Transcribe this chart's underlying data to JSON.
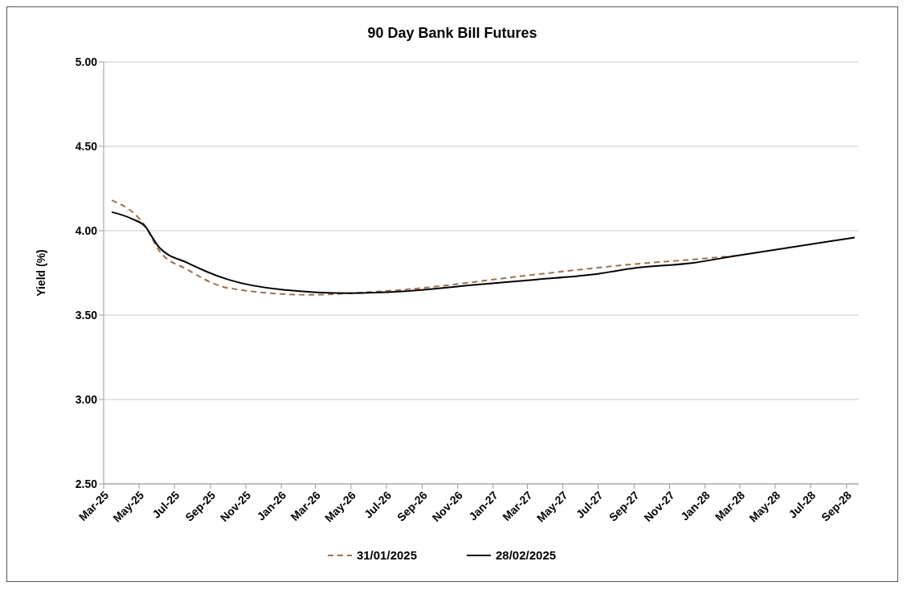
{
  "chart_data": {
    "type": "line",
    "title": "90 Day Bank Bill Futures",
    "ylabel": "Yield (%)",
    "xlim": [
      "2025-03-01",
      "2028-09-22"
    ],
    "xticks": [
      {
        "value": "2025-03",
        "label": "Mar-25"
      },
      {
        "value": "2025-05",
        "label": "May-25"
      },
      {
        "value": "2025-07",
        "label": "Jul-25"
      },
      {
        "value": "2025-09",
        "label": "Sep-25"
      },
      {
        "value": "2025-11",
        "label": "Nov-25"
      },
      {
        "value": "2026-01",
        "label": "Jan-26"
      },
      {
        "value": "2026-03",
        "label": "Mar-26"
      },
      {
        "value": "2026-05",
        "label": "May-26"
      },
      {
        "value": "2026-07",
        "label": "Jul-26"
      },
      {
        "value": "2026-09",
        "label": "Sep-26"
      },
      {
        "value": "2026-11",
        "label": "Nov-26"
      },
      {
        "value": "2027-01",
        "label": "Jan-27"
      },
      {
        "value": "2027-03",
        "label": "Mar-27"
      },
      {
        "value": "2027-05",
        "label": "May-27"
      },
      {
        "value": "2027-07",
        "label": "Jul-27"
      },
      {
        "value": "2027-09",
        "label": "Sep-27"
      },
      {
        "value": "2027-11",
        "label": "Nov-27"
      },
      {
        "value": "2028-01",
        "label": "Jan-28"
      },
      {
        "value": "2028-03",
        "label": "Mar-28"
      },
      {
        "value": "2028-05",
        "label": "May-28"
      },
      {
        "value": "2028-07",
        "label": "Jul-28"
      },
      {
        "value": "2028-09",
        "label": "Sep-28"
      }
    ],
    "ylim": [
      2.5,
      5
    ],
    "yticks": [
      {
        "value": 2.5,
        "label": "2.50"
      },
      {
        "value": 3,
        "label": "3.00"
      },
      {
        "value": 3.5,
        "label": "3.50"
      },
      {
        "value": 4,
        "label": "4.00"
      },
      {
        "value": 4.5,
        "label": "4.50"
      },
      {
        "value": 5,
        "label": "5.00"
      }
    ],
    "grid": "y",
    "legend": "bottom",
    "marker": "none",
    "series": [
      {
        "name": "31/01/2025",
        "color": "#a0704c",
        "line_style": "dashed",
        "x": [
          "2025-03-15",
          "2025-05-13",
          "2025-06-05",
          "2025-07-23",
          "2025-10-02",
          "2026-02-21",
          "2026-05-01",
          "2026-07-28",
          "2027-03-14",
          "2027-08-25",
          "2027-12-12",
          "2028-02-21"
        ],
        "values": [
          4.18,
          4.02,
          3.88,
          3.77,
          3.66,
          3.62,
          3.63,
          3.65,
          3.74,
          3.8,
          3.83,
          3.85
        ]
      },
      {
        "name": "28/02/2025",
        "color": "#000000",
        "line_style": "solid",
        "x": [
          "2025-03-15",
          "2025-04-19",
          "2025-05-13",
          "2025-05-24",
          "2025-06-05",
          "2025-07-23",
          "2025-10-02",
          "2026-01-04",
          "2026-05-01",
          "2026-07-28",
          "2026-12-02",
          "2027-03-14",
          "2027-06-21",
          "2027-09-04",
          "2027-12-12",
          "2028-02-21",
          "2028-09-15"
        ],
        "values": [
          4.11,
          4.07,
          4.02,
          3.96,
          3.9,
          3.81,
          3.71,
          3.65,
          3.63,
          3.64,
          3.68,
          3.71,
          3.74,
          3.78,
          3.81,
          3.85,
          3.96
        ]
      }
    ]
  }
}
